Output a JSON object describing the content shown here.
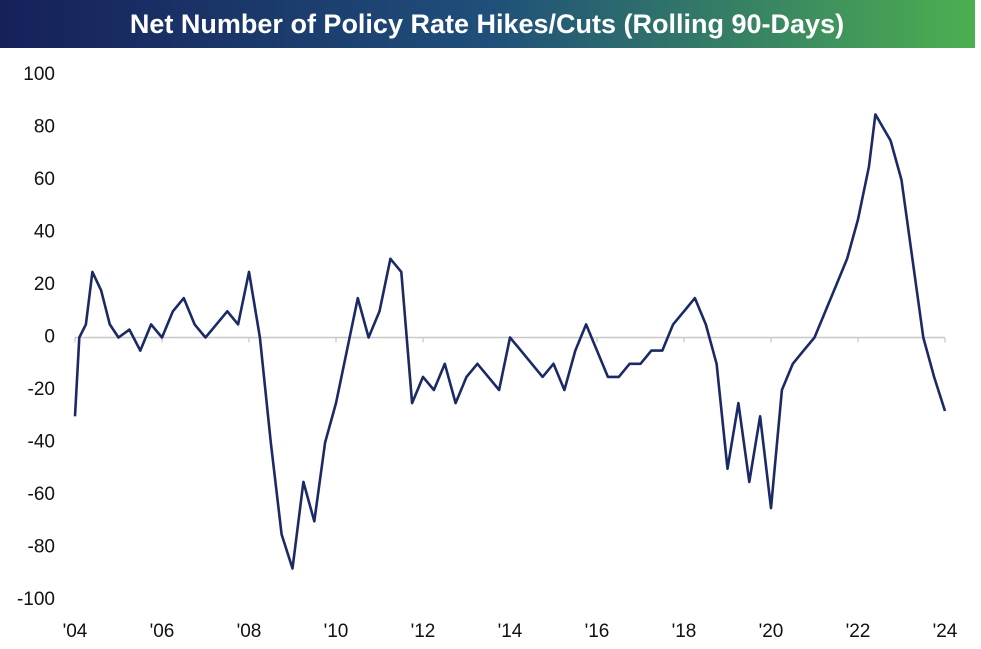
{
  "chart_data": {
    "type": "line",
    "title": "Net Number of Policy Rate Hikes/Cuts (Rolling 90-Days)",
    "x": [
      2004.0,
      2004.1,
      2004.25,
      2004.4,
      2004.6,
      2004.8,
      2005.0,
      2005.25,
      2005.5,
      2005.75,
      2006.0,
      2006.25,
      2006.5,
      2006.75,
      2007.0,
      2007.25,
      2007.5,
      2007.75,
      2008.0,
      2008.25,
      2008.5,
      2008.75,
      2009.0,
      2009.25,
      2009.5,
      2009.75,
      2010.0,
      2010.25,
      2010.5,
      2010.75,
      2011.0,
      2011.25,
      2011.5,
      2011.75,
      2012.0,
      2012.25,
      2012.5,
      2012.75,
      2013.0,
      2013.25,
      2013.5,
      2013.75,
      2014.0,
      2014.25,
      2014.5,
      2014.75,
      2015.0,
      2015.25,
      2015.5,
      2015.75,
      2016.0,
      2016.25,
      2016.5,
      2016.75,
      2017.0,
      2017.25,
      2017.5,
      2017.75,
      2018.0,
      2018.25,
      2018.5,
      2018.75,
      2019.0,
      2019.25,
      2019.5,
      2019.75,
      2020.0,
      2020.25,
      2020.5,
      2020.75,
      2021.0,
      2021.25,
      2021.5,
      2021.75,
      2022.0,
      2022.25,
      2022.4,
      2022.75,
      2023.0,
      2023.25,
      2023.5,
      2023.75,
      2024.0
    ],
    "series": [
      {
        "name": "Net Number of Policy Rate Hikes/Cuts",
        "color": "#1b2a66",
        "values": [
          -30,
          0,
          5,
          25,
          18,
          5,
          0,
          3,
          -5,
          5,
          0,
          10,
          15,
          5,
          0,
          5,
          10,
          5,
          25,
          0,
          -40,
          -75,
          -88,
          -55,
          -70,
          -40,
          -25,
          -5,
          15,
          0,
          10,
          30,
          25,
          -25,
          -15,
          -20,
          -10,
          -25,
          -15,
          -10,
          -15,
          -20,
          0,
          -5,
          -10,
          -15,
          -10,
          -20,
          -5,
          5,
          -5,
          -15,
          -15,
          -10,
          -10,
          -5,
          -5,
          5,
          10,
          15,
          5,
          -10,
          -50,
          -25,
          -55,
          -30,
          -65,
          -20,
          -10,
          -5,
          0,
          10,
          20,
          30,
          45,
          65,
          85,
          75,
          60,
          30,
          0,
          -15,
          -28
        ]
      }
    ],
    "xlim": [
      2004,
      2024
    ],
    "xticks": [
      {
        "value": 2004,
        "label": "'04"
      },
      {
        "value": 2006,
        "label": "'06"
      },
      {
        "value": 2008,
        "label": "'08"
      },
      {
        "value": 2010,
        "label": "'10"
      },
      {
        "value": 2012,
        "label": "'12"
      },
      {
        "value": 2014,
        "label": "'14"
      },
      {
        "value": 2016,
        "label": "'16"
      },
      {
        "value": 2018,
        "label": "'18"
      },
      {
        "value": 2020,
        "label": "'20"
      },
      {
        "value": 2022,
        "label": "'22"
      },
      {
        "value": 2024,
        "label": "'24"
      }
    ],
    "ylim": [
      -100,
      100
    ],
    "yticks": [
      -100,
      -80,
      -60,
      -40,
      -20,
      0,
      20,
      40,
      60,
      80,
      100
    ],
    "zero_line": true
  }
}
